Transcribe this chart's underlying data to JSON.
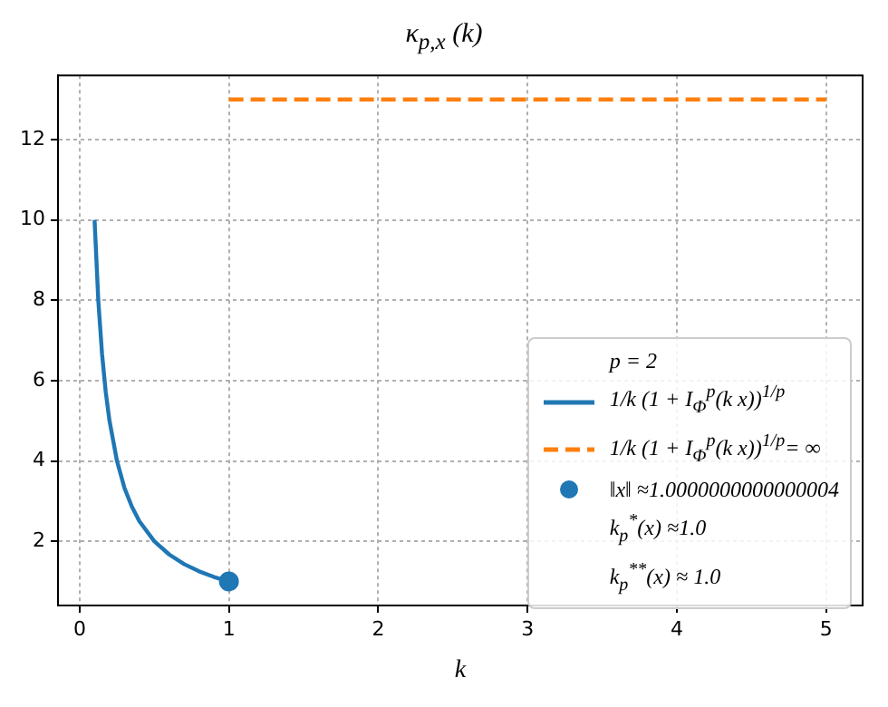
{
  "chart_data": {
    "type": "line",
    "title": "κ$_{p,x}$ (k)",
    "xlabel": "k",
    "legend_title": "p = 2",
    "xlim": [
      -0.145,
      5.245
    ],
    "xticks": [
      0,
      1,
      2,
      3,
      4,
      5
    ],
    "ylim": [
      0.4,
      13.6
    ],
    "yticks": [
      2,
      4,
      6,
      8,
      10,
      12
    ],
    "grid": true,
    "legend": "bottom right",
    "series": [
      {
        "name": "1/k (1 + I$_{Φ}$$^{p}$(k x))$^{1/p}$",
        "color": "#1f77b4",
        "line_style": "solid",
        "marker": "none",
        "x": [
          0.1,
          0.125,
          0.15,
          0.175,
          0.2,
          0.25,
          0.3,
          0.35,
          0.4,
          0.5,
          0.6,
          0.7,
          0.8,
          0.9,
          1.0
        ],
        "values": [
          10,
          8,
          6.67,
          5.71,
          5,
          4,
          3.33,
          2.86,
          2.5,
          2,
          1.67,
          1.43,
          1.25,
          1.11,
          1.0
        ]
      },
      {
        "name": "1/k (1 + I$_{Φ}$$^{p}$(k x))$^{1/p}$= ∞",
        "color": "#ff7f0e",
        "line_style": "dashed",
        "marker": "none",
        "x": [
          1,
          5
        ],
        "values": [
          13,
          13
        ]
      },
      {
        "name": "‖x‖ ≈1.0000000000000004",
        "type": "scatter",
        "color": "#1f77b4",
        "marker": "circle",
        "x": [
          1
        ],
        "values": [
          1
        ]
      }
    ],
    "annotations": [
      "k$_{p}$$^{*}$(x) ≈1.0",
      "k$_{p}$$^{**}$(x) ≈ 1.0"
    ]
  }
}
